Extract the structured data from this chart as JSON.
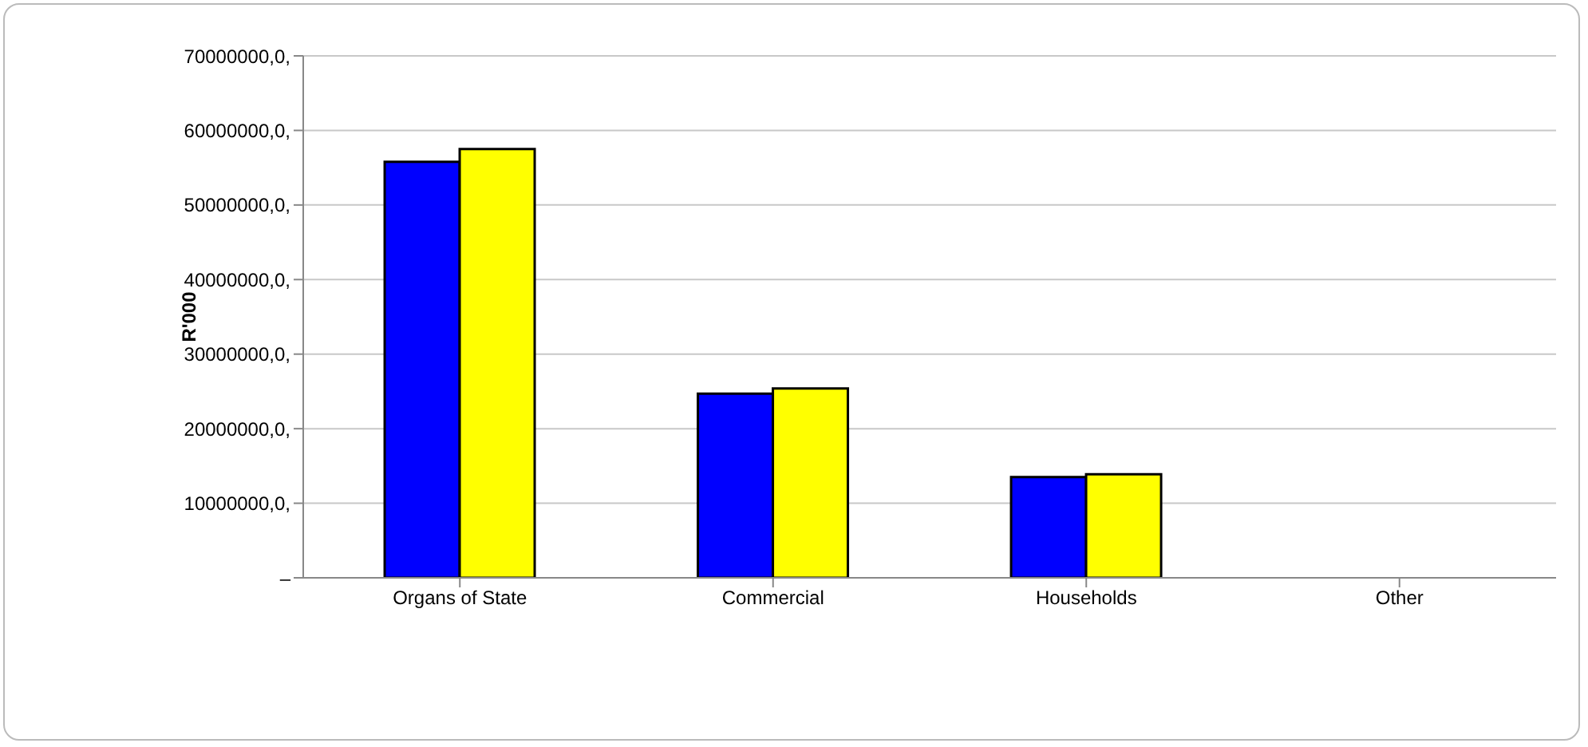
{
  "chart_data": {
    "type": "bar",
    "ylabel": "R'000",
    "categories": [
      "Organs of State",
      "Commercial",
      "Households",
      "Other"
    ],
    "series": [
      {
        "color": "#0000ff",
        "values": [
          55800000,
          24700000,
          13500000,
          0
        ]
      },
      {
        "color": "#ffff00",
        "values": [
          57500000,
          25400000,
          13900000,
          0
        ]
      }
    ],
    "ylim": [
      0,
      70000000
    ],
    "yticks": [
      {
        "value": 0,
        "label": "–"
      },
      {
        "value": 10000000,
        "label": "10000000,0,"
      },
      {
        "value": 20000000,
        "label": "20000000,0,"
      },
      {
        "value": 30000000,
        "label": "30000000,0,"
      },
      {
        "value": 40000000,
        "label": "40000000,0,"
      },
      {
        "value": 50000000,
        "label": "50000000,0,"
      },
      {
        "value": 60000000,
        "label": "60000000,0,"
      },
      {
        "value": 70000000,
        "label": "70000000,0,"
      }
    ],
    "grid": "y",
    "legend": false
  }
}
